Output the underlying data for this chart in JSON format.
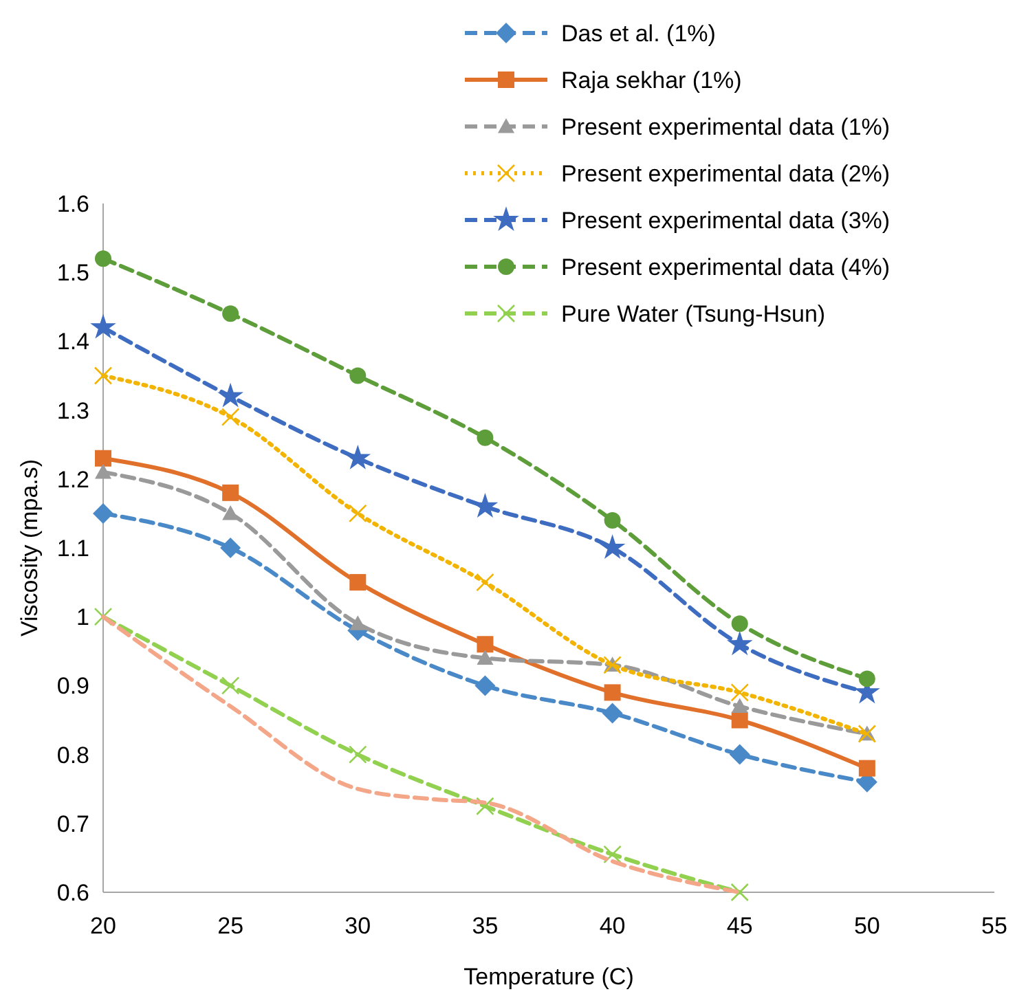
{
  "chart_data": {
    "type": "line",
    "xlabel": "Temperature (C)",
    "ylabel": "Viscosity (mpa.s)",
    "x": [
      20,
      25,
      30,
      35,
      40,
      45,
      50
    ],
    "xlim": [
      20,
      55
    ],
    "xticks": [
      20,
      25,
      30,
      35,
      40,
      45,
      50,
      55
    ],
    "ylim": [
      0.6,
      1.6
    ],
    "yticks": [
      0.6,
      0.7,
      0.8,
      0.9,
      1,
      1.1,
      1.2,
      1.3,
      1.4,
      1.5,
      1.6
    ],
    "grid": false,
    "legend": "top right",
    "series": [
      {
        "name": "Das et al. (1%)",
        "color": "#4a89c8",
        "marker": "diamond",
        "line_style": "dashed",
        "values": [
          1.15,
          1.1,
          0.98,
          0.9,
          0.86,
          0.8,
          0.76
        ]
      },
      {
        "name": "Raja sekhar (1%)",
        "color": "#e0702a",
        "marker": "square",
        "line_style": "solid",
        "values": [
          1.23,
          1.18,
          1.05,
          0.96,
          0.89,
          0.85,
          0.78
        ]
      },
      {
        "name": "Present experimental data (1%)",
        "color": "#9a9a9a",
        "marker": "triangle",
        "line_style": "dashed",
        "values": [
          1.21,
          1.15,
          0.99,
          0.94,
          0.93,
          0.87,
          0.83
        ]
      },
      {
        "name": "Present experimental data (2%)",
        "color": "#f2b400",
        "marker": "cross",
        "line_style": "dotted",
        "values": [
          1.35,
          1.29,
          1.15,
          1.05,
          0.93,
          0.89,
          0.83
        ]
      },
      {
        "name": "Present experimental data (3%)",
        "color": "#3d6cc0",
        "marker": "star",
        "line_style": "dashed",
        "values": [
          1.42,
          1.32,
          1.23,
          1.16,
          1.1,
          0.96,
          0.89
        ]
      },
      {
        "name": "Present experimental data (4%)",
        "color": "#5e9e3a",
        "marker": "circle",
        "line_style": "dashed",
        "values": [
          1.52,
          1.44,
          1.35,
          1.26,
          1.14,
          0.99,
          0.91
        ]
      },
      {
        "name": "Pure Water (Tsung-Hsun)",
        "color": "#92d050",
        "marker": "cross",
        "line_style": "dashed",
        "x": [
          20,
          25,
          30,
          35,
          40,
          45
        ],
        "values": [
          1.0,
          0.9,
          0.8,
          0.725,
          0.655,
          0.6
        ]
      },
      {
        "color": "#f4a688",
        "marker": "none",
        "line_style": "dashed",
        "x": [
          20,
          25,
          30,
          33,
          35,
          40,
          45
        ],
        "values": [
          1.0,
          0.87,
          0.75,
          0.735,
          0.73,
          0.645,
          0.6
        ]
      }
    ]
  }
}
